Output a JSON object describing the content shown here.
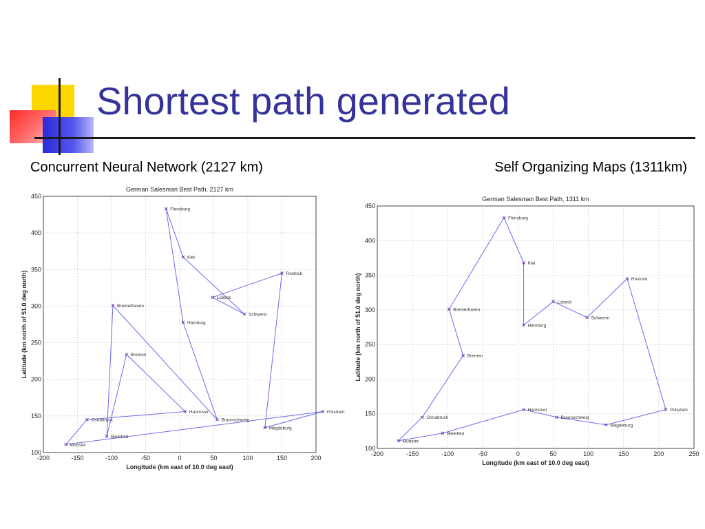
{
  "slide": {
    "title": "Shortest path generated",
    "caption_left": "Concurrent Neural Network (2127 km)",
    "caption_right": "Self Organizing Maps (1311km)"
  },
  "colors": {
    "title": "#333399",
    "route": "#6a6aee",
    "marker": "#7a2fb0",
    "deco_yellow": "#ffd700",
    "deco_red": "#ff2a2a",
    "deco_blue": "#2b2bd9"
  },
  "chart_data": [
    {
      "type": "line",
      "title": "German Salesman Best Path, 2127 km",
      "xlabel": "Longitude (km east of 10.0 deg east)",
      "ylabel": "Latitude (km north of 51.0 deg north)",
      "xlim": [
        -200,
        200
      ],
      "ylim": [
        100,
        450
      ],
      "xticks": [
        -200,
        -150,
        -100,
        -50,
        0,
        50,
        100,
        150,
        200
      ],
      "yticks": [
        100,
        150,
        200,
        250,
        300,
        350,
        400,
        450
      ],
      "grid": true,
      "cities": [
        {
          "name": "Flensburg",
          "x": -20,
          "y": 433
        },
        {
          "name": "Kiel",
          "x": 5,
          "y": 367
        },
        {
          "name": "Lubeck",
          "x": 48,
          "y": 312
        },
        {
          "name": "Schwerin",
          "x": 95,
          "y": 289
        },
        {
          "name": "Rostock",
          "x": 150,
          "y": 345
        },
        {
          "name": "Hamburg",
          "x": 5,
          "y": 278
        },
        {
          "name": "Bremerhaven",
          "x": -98,
          "y": 301
        },
        {
          "name": "Bremen",
          "x": -78,
          "y": 234
        },
        {
          "name": "Hannover",
          "x": 8,
          "y": 156
        },
        {
          "name": "Braunschweig",
          "x": 55,
          "y": 145
        },
        {
          "name": "Magdeburg",
          "x": 125,
          "y": 134
        },
        {
          "name": "Potsdam",
          "x": 210,
          "y": 156
        },
        {
          "name": "Osnabruck",
          "x": -136,
          "y": 145
        },
        {
          "name": "Bielefeld",
          "x": -107,
          "y": 122
        },
        {
          "name": "Munster",
          "x": -167,
          "y": 111
        }
      ],
      "path": [
        "Flensburg",
        "Hamburg",
        "Braunschweig",
        "Bremerhaven",
        "Bielefeld",
        "Bremen",
        "Hannover",
        "Osnabruck",
        "Munster",
        "Potsdam",
        "Magdeburg",
        "Rostock",
        "Lubeck",
        "Schwerin",
        "Kiel",
        "Flensburg"
      ]
    },
    {
      "type": "line",
      "title": "German Salesman Best Path, 1311 km",
      "xlabel": "Longitude (km east of 10.0 deg east)",
      "ylabel": "Latitude (km north of 51.0 deg north)",
      "xlim": [
        -200,
        250
      ],
      "ylim": [
        100,
        450
      ],
      "xticks": [
        -200,
        -150,
        -100,
        -50,
        0,
        50,
        100,
        150,
        200,
        250
      ],
      "yticks": [
        100,
        150,
        200,
        250,
        300,
        350,
        400,
        450
      ],
      "grid": true,
      "cities": [
        {
          "name": "Flensburg",
          "x": -20,
          "y": 433
        },
        {
          "name": "Kiel",
          "x": 8,
          "y": 368
        },
        {
          "name": "Hamburg",
          "x": 8,
          "y": 278
        },
        {
          "name": "Lubeck",
          "x": 50,
          "y": 312
        },
        {
          "name": "Schwerin",
          "x": 98,
          "y": 289
        },
        {
          "name": "Rostock",
          "x": 155,
          "y": 345
        },
        {
          "name": "Potsdam",
          "x": 210,
          "y": 156
        },
        {
          "name": "Magdeburg",
          "x": 125,
          "y": 134
        },
        {
          "name": "Braunschweig",
          "x": 55,
          "y": 145
        },
        {
          "name": "Hannover",
          "x": 8,
          "y": 156
        },
        {
          "name": "Bielefeld",
          "x": -107,
          "y": 122
        },
        {
          "name": "Munster",
          "x": -170,
          "y": 111
        },
        {
          "name": "Osnabruck",
          "x": -136,
          "y": 145
        },
        {
          "name": "Bremen",
          "x": -78,
          "y": 234
        },
        {
          "name": "Bremerhaven",
          "x": -98,
          "y": 301
        }
      ],
      "path": [
        "Flensburg",
        "Kiel",
        "Hamburg",
        "Lubeck",
        "Schwerin",
        "Rostock",
        "Potsdam",
        "Magdeburg",
        "Braunschweig",
        "Hannover",
        "Bielefeld",
        "Munster",
        "Osnabruck",
        "Bremen",
        "Bremerhaven",
        "Flensburg"
      ]
    }
  ]
}
